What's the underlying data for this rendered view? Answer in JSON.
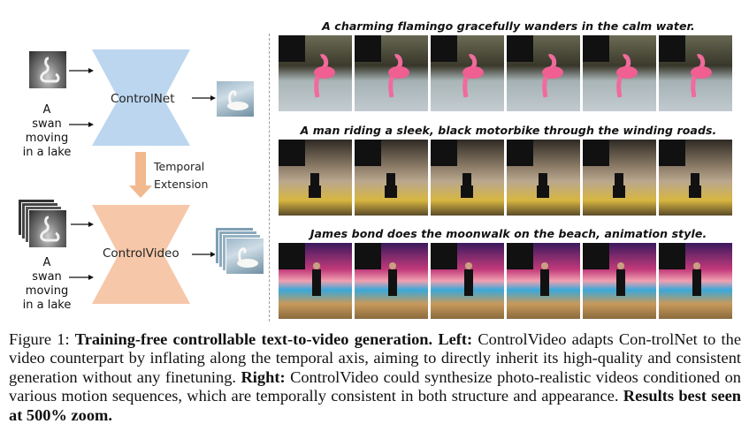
{
  "left": {
    "input_text_top": [
      "A",
      "swan",
      "moving",
      "in a lake"
    ],
    "input_text_bottom": [
      "A",
      "swan",
      "moving",
      "in a lake"
    ],
    "controlnet_label": "ControlNet",
    "controlvideo_label": "ControlVideo",
    "temporal_label_line1": "Temporal",
    "temporal_label_line2": "Extension"
  },
  "right": {
    "prompts": [
      "A charming flamingo gracefully wanders in the calm water.",
      "A man riding a sleek, black motorbike through the winding roads.",
      "James bond does the moonwalk on the beach, animation style."
    ]
  },
  "caption": {
    "fig_label": "Figure 1:",
    "bold_title": "Training-free controllable text-to-video generation.",
    "left_label": "Left:",
    "left_text_1": "ControlVideo adapts Con-",
    "left_text_2": "trolNet to the video counterpart by inflating along the temporal axis, aiming to directly inherit its",
    "left_text_3": "high-quality and consistent generation without any finetuning.",
    "right_label": "Right:",
    "right_text_1": "ControlVideo could synthesize",
    "right_text_2": "photo-realistic videos conditioned on various motion sequences, which are temporally consistent in",
    "right_text_3": "both structure and appearance.",
    "results_bold": "Results best seen at 500% zoom."
  },
  "colors": {
    "controlnet_fill": "#bcd6ef",
    "controlvideo_fill": "#f6c7a9",
    "arrow_orange": "#f2b98e",
    "divider": "#9a9a9a"
  }
}
